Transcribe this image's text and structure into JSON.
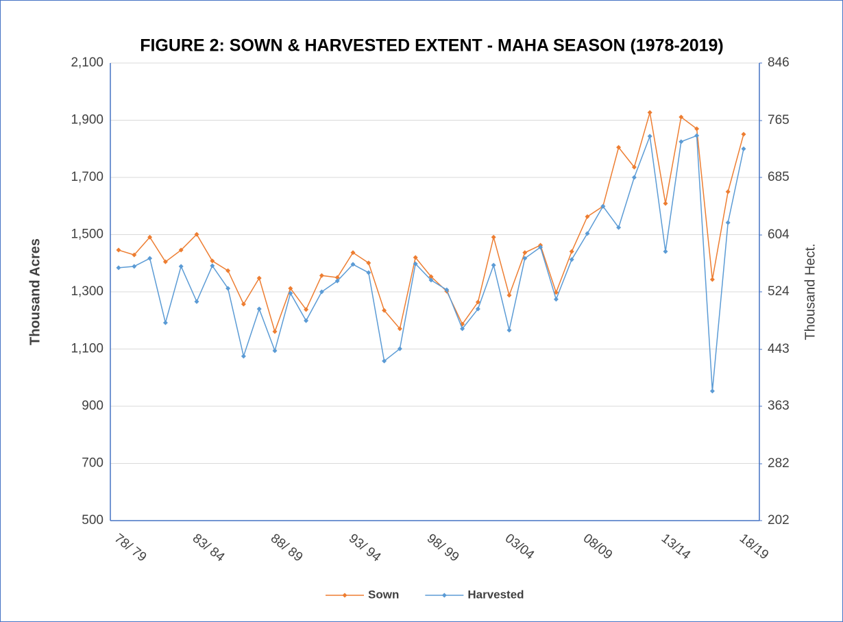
{
  "chart_data": {
    "type": "line",
    "title": "FIGURE 2: SOWN & HARVESTED EXTENT - MAHA SEASON (1978-2019)",
    "y_label": "Thousand Acres",
    "y2_label": "Thousand Hect.",
    "categories": [
      "78/ 79",
      null,
      null,
      null,
      null,
      "83/ 84",
      null,
      null,
      null,
      null,
      "88/ 89",
      null,
      null,
      null,
      null,
      "93/ 94",
      null,
      null,
      null,
      null,
      "98/ 99",
      null,
      null,
      null,
      null,
      "03/04",
      null,
      null,
      null,
      null,
      "08/09",
      null,
      null,
      null,
      null,
      "13/14",
      null,
      null,
      null,
      null,
      "18/19"
    ],
    "series": [
      {
        "name": "Sown",
        "color": "#ed7d31",
        "values": [
          1446,
          1429,
          1491,
          1405,
          1446,
          1501,
          1408,
          1374,
          1257,
          1348,
          1161,
          1312,
          1238,
          1357,
          1350,
          1437,
          1401,
          1235,
          1171,
          1420,
          1353,
          1302,
          1187,
          1264,
          1491,
          1288,
          1437,
          1463,
          1298,
          1441,
          1563,
          1599,
          1805,
          1736,
          1927,
          1609,
          1911,
          1870,
          1343,
          1650,
          1851
        ]
      },
      {
        "name": "Harvested",
        "color": "#5b9bd5",
        "values": [
          1384,
          1389,
          1417,
          1192,
          1389,
          1266,
          1391,
          1312,
          1075,
          1240,
          1094,
          1295,
          1199,
          1300,
          1338,
          1396,
          1367,
          1058,
          1101,
          1398,
          1341,
          1307,
          1171,
          1240,
          1393,
          1166,
          1417,
          1456,
          1274,
          1413,
          1504,
          1599,
          1525,
          1700,
          1844,
          1441,
          1825,
          1846,
          953,
          1542,
          1800
        ]
      }
    ],
    "ylim": [
      500,
      2100
    ],
    "yticks": [
      500,
      700,
      900,
      {
        "value": 1100,
        "label": "1,100"
      },
      {
        "value": 1300,
        "label": "1,300"
      },
      {
        "value": 1500,
        "label": "1,500"
      },
      {
        "value": 1700,
        "label": "1,700"
      },
      {
        "value": 1900,
        "label": "1,900"
      },
      {
        "value": 2100,
        "label": "2,100"
      }
    ],
    "y2lim": [
      202,
      846
    ],
    "y2ticks": [
      202,
      282,
      363,
      443,
      524,
      604,
      685,
      765,
      846
    ],
    "grid": true,
    "legend": "bottom"
  }
}
